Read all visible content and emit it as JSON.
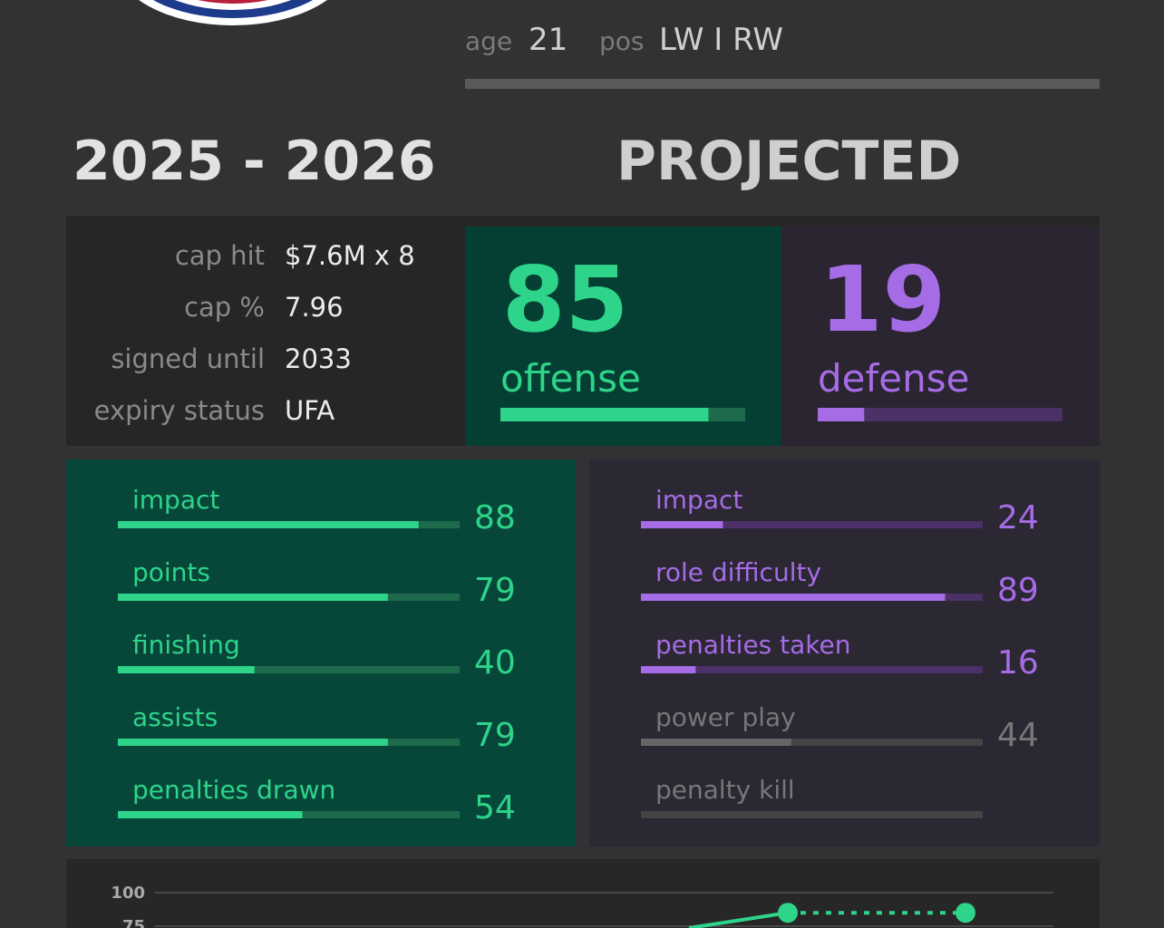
{
  "header": {
    "age_label": "age",
    "age": 21,
    "pos_label": "pos",
    "pos": "LW I RW"
  },
  "season": "2025 - 2026",
  "projection_label": "PROJECTED",
  "contract": [
    {
      "label": "cap hit",
      "value": "$7.6M x 8"
    },
    {
      "label": "cap %",
      "value": "7.96"
    },
    {
      "label": "signed until",
      "value": "2033"
    },
    {
      "label": "expiry status",
      "value": "UFA"
    }
  ],
  "ratings": {
    "offense": {
      "label": "offense",
      "value": 85,
      "color": "#2ed48a",
      "track": "#1d6a4c"
    },
    "defense": {
      "label": "defense",
      "value": 19,
      "color": "#a66ce6",
      "track": "#4b3168"
    }
  },
  "offense_stats": [
    {
      "name": "impact",
      "value": 88,
      "color": "#2ed48a"
    },
    {
      "name": "points",
      "value": 79,
      "color": "#2ed48a"
    },
    {
      "name": "finishing",
      "value": 40,
      "color": "#2ed48a"
    },
    {
      "name": "assists",
      "value": 79,
      "color": "#2ed48a"
    },
    {
      "name": "penalties drawn",
      "value": 54,
      "color": "#2ed48a"
    }
  ],
  "defense_stats": [
    {
      "name": "impact",
      "value": 24,
      "color": "#a66ce6"
    },
    {
      "name": "role difficulty",
      "value": 89,
      "color": "#a66ce6"
    },
    {
      "name": "penalties taken",
      "value": 16,
      "color": "#a66ce6"
    },
    {
      "name": "power play",
      "value": 44,
      "color": "#777777"
    },
    {
      "name": "penalty kill",
      "value": null,
      "color": "#777777"
    }
  ],
  "chart_data": {
    "type": "line",
    "categories": [
      null,
      null
    ],
    "series": [
      {
        "name": null,
        "color": "#2ed48a",
        "values": [
          85,
          85
        ]
      }
    ],
    "ylim": [
      0,
      100
    ],
    "yticks": [
      100,
      75
    ],
    "grid": true
  }
}
